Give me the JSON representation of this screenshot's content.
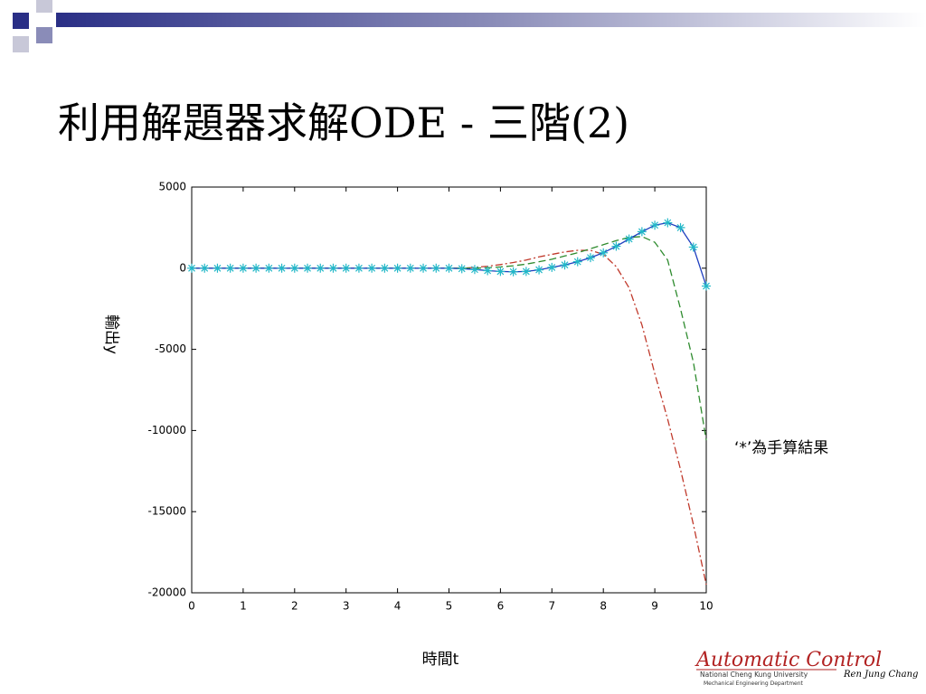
{
  "chart_data": {
    "type": "line",
    "title": "利用解題器求解ODE - 三階(2)",
    "xlabel": "時間t",
    "ylabel": "輸出y",
    "annotation": "‘*’為手算結果",
    "x": [
      0,
      0.25,
      0.5,
      0.75,
      1,
      1.25,
      1.5,
      1.75,
      2,
      2.25,
      2.5,
      2.75,
      3,
      3.25,
      3.5,
      3.75,
      4,
      4.25,
      4.5,
      4.75,
      5,
      5.25,
      5.5,
      5.75,
      6,
      6.25,
      6.5,
      6.75,
      7,
      7.25,
      7.5,
      7.75,
      8,
      8.25,
      8.5,
      8.75,
      9,
      9.25,
      9.5,
      9.75,
      10
    ],
    "xlim": [
      0,
      10
    ],
    "xticks": [
      0,
      1,
      2,
      3,
      4,
      5,
      6,
      7,
      8,
      9,
      10
    ],
    "ylim": [
      -20000,
      5000
    ],
    "yticks": [
      -20000,
      -15000,
      -10000,
      -5000,
      0,
      5000
    ],
    "series": [
      {
        "color": "#c0392b",
        "linestyle": "dashdot",
        "values": [
          0,
          0,
          0,
          0,
          0,
          0,
          0,
          0,
          0,
          0,
          0,
          0,
          0,
          0,
          0,
          0,
          0,
          0,
          0,
          0,
          0,
          0,
          50,
          120,
          220,
          350,
          500,
          700,
          850,
          1000,
          1100,
          1100,
          850,
          100,
          -1200,
          -3500,
          -6500,
          -9300,
          -12400,
          -15800,
          -19500
        ]
      },
      {
        "color": "#2e8b2e",
        "linestyle": "dashed",
        "values": [
          0,
          0,
          0,
          0,
          0,
          0,
          0,
          0,
          0,
          0,
          0,
          0,
          0,
          0,
          0,
          0,
          0,
          0,
          0,
          0,
          0,
          0,
          0,
          30,
          80,
          150,
          250,
          400,
          550,
          750,
          950,
          1200,
          1450,
          1700,
          1900,
          1950,
          1600,
          500,
          -2500,
          -5800,
          -10600
        ]
      },
      {
        "color": "#1f3fbf",
        "linestyle": "solid",
        "values": [
          0,
          0,
          0,
          0,
          0,
          0,
          0,
          0,
          0,
          0,
          0,
          0,
          0,
          0,
          0,
          0,
          0,
          0,
          0,
          0,
          0,
          -30,
          -80,
          -150,
          -200,
          -220,
          -200,
          -100,
          50,
          200,
          400,
          650,
          950,
          1350,
          1800,
          2250,
          2650,
          2800,
          2500,
          1300,
          -1100
        ]
      },
      {
        "color": "#22b8c8",
        "linestyle": "none",
        "marker": "star",
        "values": [
          0,
          0,
          0,
          0,
          0,
          0,
          0,
          0,
          0,
          0,
          0,
          0,
          0,
          0,
          0,
          0,
          0,
          0,
          0,
          0,
          0,
          -30,
          -80,
          -150,
          -200,
          -220,
          -200,
          -100,
          50,
          200,
          400,
          650,
          950,
          1350,
          1800,
          2250,
          2650,
          2800,
          2500,
          1300,
          -1100
        ]
      }
    ]
  },
  "footer": {
    "logo": "Automatic Control",
    "university": "National Cheng Kung University",
    "department": "Mechanical Engineering Department",
    "author": "Ren Jung Chang"
  }
}
